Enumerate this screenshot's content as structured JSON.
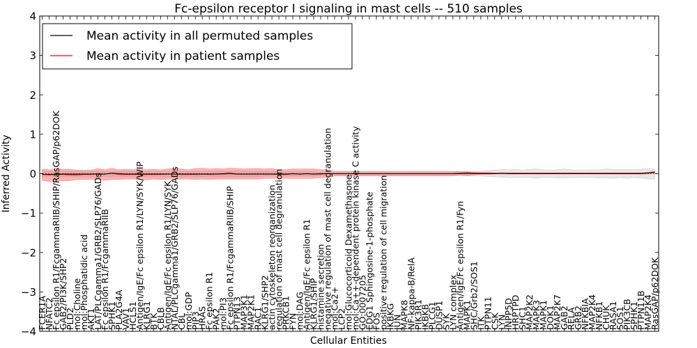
{
  "chart_data": {
    "type": "line",
    "title": "Fc-epsilon receptor I signaling in mast cells -- 510 samples",
    "xlabel": "Cellular Entities",
    "ylabel": "Inferred Activity",
    "ylim": [
      -4,
      4
    ],
    "yticks": [
      -4,
      -3,
      -2,
      -1,
      0,
      1,
      2,
      3,
      4
    ],
    "ytick_labels": [
      "−4",
      "−3",
      "−2",
      "−1",
      "0",
      "1",
      "2",
      "3",
      "4"
    ],
    "legend": {
      "location": "top-left",
      "entries": [
        {
          "label": "Mean activity in all permuted samples",
          "color": "#000000"
        },
        {
          "label": "Mean activity in patient samples",
          "color": "#ff0000"
        }
      ]
    },
    "categories": [
      "FCER1A",
      "NFATC2",
      "Fc epsilon R1/FcgammaRIIB/SHIP/RasGAP/p62DOK",
      "GAB2/PI3K/SHP2",
      "PLD2",
      "mol:Choline",
      "mol:Phosphatidic acid",
      "AKT1",
      "LAT/PLCgamma1/GRB2/SLP76/GADs",
      "Fc epsilon R1/FcgammaRIIB",
      "SPHK1",
      "PLA2G4A",
      "VAV1",
      "HCLS1",
      "Antigen/IgE/Fc epsilon R1/LYN/SYK/WIP",
      "KLRG1",
      "BTK",
      "CBLB",
      "Antigen/IgE/Fc epsilon R1/LYN/SYK",
      "NTAL/PLCgamma1/GRB2/SLP76/GADs",
      "CBL",
      "mol:GDP",
      "PIP3",
      "HRAS",
      "Fc epsilon R1",
      "PAK2",
      "mol:PI3",
      "Fc epsilon R1/FcgammaRIIB/SHIP",
      "PTPN13",
      "MAP3K1",
      "MAP2K1",
      "RAC1",
      "KLRG1/SHP2",
      "actin cytoskeleton reorganization",
      "regulation of mast cell degranulation",
      "PRKCB1",
      "FYN",
      "mol:DAG",
      "Antigen/IgE/Fc epsilon R1",
      "KLRG1/SHIP",
      "histamine secretion",
      "negative regulation of mast cell degranulation",
      "mol:Ca2+",
      "LCP2",
      "mol:Glucocorticoid Dexamethasone",
      "mol:Ca++-dependent protein kinase C activity",
      "GO:0007205",
      "EDG1 Sphingosine-1-phosphate",
      "FOS",
      "positive regulation of cell migration",
      "IKBKG",
      "JUN",
      "MAPK8",
      "NF-kappa-B/RelA",
      "PIK3R1",
      "IKBKB",
      "PLCG1",
      "DUSP1",
      "SYK",
      "LYN complex",
      "Antigen/IgE/Fc epsilon R1/Fyn",
      "MAPK1",
      "SHC/Grb2/SOS1",
      "ITK",
      "PTPN11",
      "CSK",
      "LYN",
      "INPP5D",
      "HRPTPD",
      "SHC1",
      "MAP2K2",
      "MAPK3",
      "MAPK1",
      "DOK1",
      "MAP2K7",
      "GAB2",
      "RELA",
      "GRB2",
      "NFKBIA",
      "MAP2K4",
      "NFKB1",
      "CHUK",
      "RASA1",
      "SOS1",
      "PIK3CB",
      "SPHK1",
      "PTPN11B",
      "MAP2K4",
      "RasGAP/p62DOK"
    ],
    "series": [
      {
        "name": "Mean activity in patient samples",
        "color": "#ff0000",
        "values": [
          -0.01,
          -0.03,
          -0.02,
          -0.02,
          -0.03,
          -0.03,
          -0.02,
          -0.02,
          0.0,
          -0.01,
          0.01,
          -0.02,
          -0.02,
          -0.02,
          -0.02,
          -0.02,
          -0.02,
          -0.02,
          -0.01,
          -0.01,
          -0.02,
          -0.02,
          -0.02,
          -0.01,
          -0.02,
          -0.01,
          -0.01,
          0.0,
          -0.01,
          -0.01,
          -0.01,
          -0.01,
          -0.01,
          -0.01,
          -0.02,
          -0.02,
          0.0,
          -0.01,
          0.0,
          -0.01,
          -0.01,
          0.0,
          0.0,
          0.0,
          0.0,
          0.0,
          0.0,
          0.0,
          0.0,
          0.0,
          0.0,
          0.0,
          0.0,
          0.0,
          0.0,
          0.0,
          0.0,
          0.0,
          0.0,
          0.0,
          0.01,
          0.02,
          0.01,
          0.01,
          0.01,
          0.01,
          0.01,
          0.01,
          0.01,
          0.01,
          0.01,
          0.01,
          0.01,
          0.01,
          0.01,
          0.01,
          0.01,
          0.01,
          0.01,
          0.01,
          0.01,
          0.01,
          0.01,
          0.01,
          0.01,
          0.01,
          0.01,
          0.02,
          0.03
        ]
      },
      {
        "name": "Mean activity in all permuted samples",
        "color": "#000000",
        "values": [
          -0.02,
          -0.02,
          -0.02,
          -0.01,
          -0.01,
          -0.01,
          -0.01,
          -0.01,
          -0.01,
          -0.01,
          0.01,
          0.0,
          -0.01,
          -0.01,
          -0.01,
          -0.01,
          -0.01,
          -0.01,
          -0.01,
          -0.01,
          -0.01,
          -0.01,
          -0.01,
          -0.01,
          -0.01,
          -0.01,
          0.0,
          0.01,
          -0.01,
          -0.01,
          -0.01,
          -0.01,
          -0.01,
          -0.01,
          -0.01,
          -0.01,
          0.0,
          -0.01,
          0.0,
          -0.01,
          0.0,
          0.0,
          0.0,
          0.0,
          0.0,
          0.0,
          0.0,
          0.0,
          0.0,
          0.0,
          0.0,
          0.0,
          0.0,
          0.0,
          0.0,
          0.0,
          0.0,
          0.0,
          0.0,
          0.0,
          0.0,
          0.01,
          0.0,
          0.0,
          0.0,
          0.0,
          0.01,
          0.0,
          0.0,
          0.0,
          0.0,
          0.0,
          0.0,
          0.0,
          0.0,
          0.0,
          0.0,
          0.0,
          0.0,
          0.0,
          0.0,
          0.0,
          0.0,
          0.0,
          0.0,
          0.0,
          0.0,
          0.02,
          0.04
        ]
      }
    ],
    "bands": [
      {
        "name": "patient samples spread",
        "color": "#ff0000",
        "lower": [
          -0.17,
          -0.2,
          -0.18,
          -0.18,
          -0.18,
          -0.15,
          -0.15,
          -0.15,
          -0.15,
          -0.17,
          -0.15,
          -0.15,
          -0.14,
          -0.14,
          -0.15,
          -0.16,
          -0.14,
          -0.15,
          -0.14,
          -0.14,
          -0.14,
          -0.14,
          -0.15,
          -0.14,
          -0.15,
          -0.14,
          -0.14,
          -0.14,
          -0.14,
          -0.14,
          -0.14,
          -0.14,
          -0.12,
          -0.12,
          -0.12,
          -0.12,
          -0.12,
          -0.12,
          -0.12,
          -0.12,
          -0.1,
          -0.1,
          -0.06,
          -0.06,
          -0.06,
          -0.06,
          -0.06,
          -0.06,
          -0.06,
          -0.06,
          -0.06,
          -0.06,
          -0.06,
          -0.06,
          -0.06,
          -0.06,
          -0.06,
          -0.06,
          -0.06,
          -0.06,
          -0.03,
          -0.05,
          -0.03,
          -0.02,
          -0.02,
          -0.01,
          -0.01,
          -0.01,
          -0.01,
          -0.01,
          -0.01,
          -0.01,
          -0.01,
          -0.01,
          -0.01,
          -0.01,
          -0.01,
          -0.01,
          -0.01,
          -0.01,
          -0.01,
          -0.01,
          -0.01,
          -0.01,
          -0.01,
          -0.01,
          -0.01,
          -0.01,
          0.0
        ],
        "upper": [
          0.12,
          0.1,
          0.12,
          0.11,
          0.11,
          0.09,
          0.09,
          0.09,
          0.13,
          0.1,
          0.14,
          0.1,
          0.11,
          0.1,
          0.12,
          0.1,
          0.11,
          0.1,
          0.12,
          0.14,
          0.12,
          0.1,
          0.13,
          0.14,
          0.12,
          0.13,
          0.12,
          0.14,
          0.13,
          0.12,
          0.13,
          0.13,
          0.12,
          0.13,
          0.1,
          0.1,
          0.12,
          0.12,
          0.12,
          0.12,
          0.1,
          0.1,
          0.06,
          0.06,
          0.06,
          0.06,
          0.06,
          0.06,
          0.06,
          0.06,
          0.06,
          0.06,
          0.06,
          0.06,
          0.06,
          0.06,
          0.06,
          0.06,
          0.06,
          0.06,
          0.05,
          0.05,
          0.04,
          0.03,
          0.03,
          0.02,
          0.02,
          0.02,
          0.02,
          0.02,
          0.02,
          0.02,
          0.02,
          0.02,
          0.02,
          0.02,
          0.02,
          0.02,
          0.02,
          0.02,
          0.02,
          0.02,
          0.02,
          0.02,
          0.02,
          0.02,
          0.02,
          0.03,
          0.06
        ]
      },
      {
        "name": "permuted samples spread",
        "color": "#888888",
        "lower": [
          -0.08,
          -0.08,
          -0.08,
          -0.08,
          -0.08,
          -0.08,
          -0.08,
          -0.08,
          -0.08,
          -0.08,
          -0.08,
          -0.08,
          -0.08,
          -0.08,
          -0.08,
          -0.08,
          -0.08,
          -0.08,
          -0.08,
          -0.08,
          -0.08,
          -0.08,
          -0.08,
          -0.08,
          -0.08,
          -0.08,
          -0.08,
          -0.08,
          -0.08,
          -0.08,
          -0.08,
          -0.08,
          -0.06,
          -0.06,
          -0.06,
          -0.06,
          -0.06,
          -0.06,
          -0.06,
          -0.06,
          -0.05,
          -0.05,
          -0.03,
          -0.03,
          -0.03,
          -0.03,
          -0.03,
          -0.03,
          -0.03,
          -0.03,
          -0.03,
          -0.03,
          -0.03,
          -0.03,
          -0.03,
          -0.03,
          -0.03,
          -0.03,
          -0.03,
          -0.03,
          -0.06,
          -0.06,
          -0.06,
          -0.06,
          -0.07,
          -0.08,
          -0.09,
          -0.1,
          -0.1,
          -0.1,
          -0.1,
          -0.11,
          -0.1,
          -0.1,
          -0.11,
          -0.11,
          -0.1,
          -0.1,
          -0.1,
          -0.1,
          -0.11,
          -0.11,
          -0.12,
          -0.1,
          -0.12,
          -0.1,
          -0.11,
          -0.14,
          -0.13
        ],
        "upper": [
          0.06,
          0.06,
          0.06,
          0.06,
          0.06,
          0.06,
          0.06,
          0.06,
          0.06,
          0.06,
          0.06,
          0.06,
          0.06,
          0.06,
          0.06,
          0.06,
          0.06,
          0.06,
          0.06,
          0.06,
          0.06,
          0.06,
          0.06,
          0.06,
          0.06,
          0.06,
          0.06,
          0.06,
          0.06,
          0.06,
          0.06,
          0.06,
          0.05,
          0.05,
          0.05,
          0.05,
          0.05,
          0.05,
          0.05,
          0.05,
          0.04,
          0.04,
          0.03,
          0.03,
          0.03,
          0.03,
          0.03,
          0.03,
          0.03,
          0.03,
          0.03,
          0.03,
          0.03,
          0.03,
          0.03,
          0.03,
          0.03,
          0.03,
          0.03,
          0.03,
          0.06,
          0.06,
          0.06,
          0.06,
          0.08,
          0.09,
          0.11,
          0.1,
          0.11,
          0.09,
          0.11,
          0.12,
          0.1,
          0.09,
          0.1,
          0.12,
          0.1,
          0.09,
          0.09,
          0.1,
          0.1,
          0.12,
          0.11,
          0.1,
          0.11,
          0.1,
          0.11,
          0.13,
          0.11
        ]
      }
    ],
    "grid": false
  }
}
